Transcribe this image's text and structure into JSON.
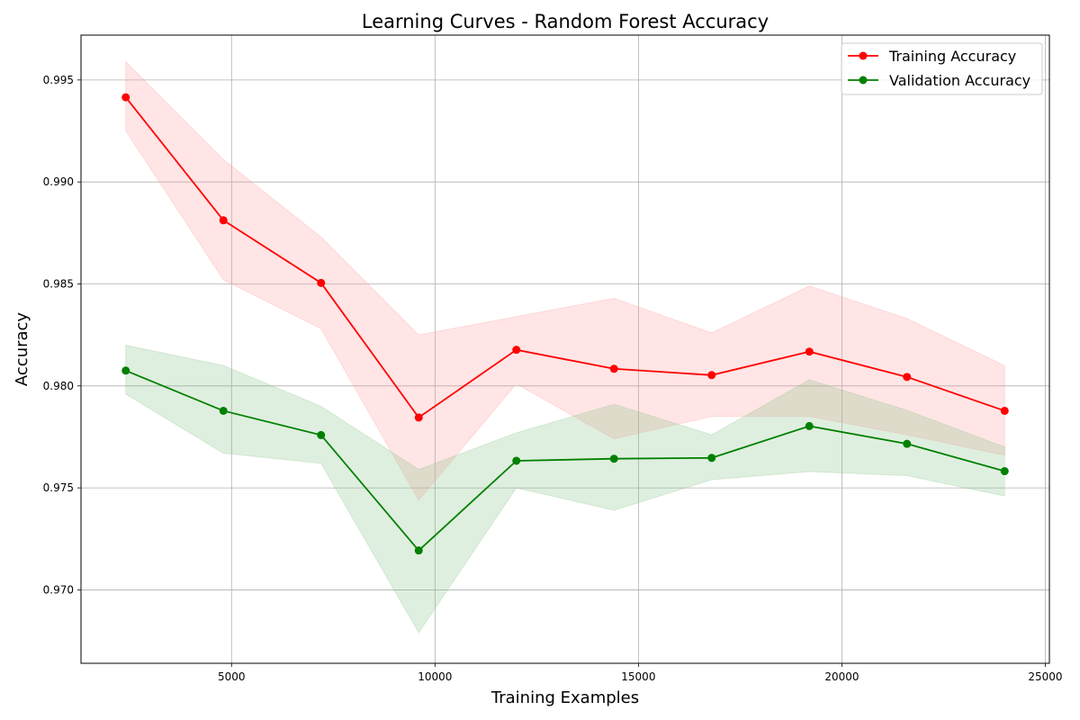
{
  "chart_data": {
    "type": "line",
    "title": "Learning Curves - Random Forest Accuracy",
    "xlabel": "Training Examples",
    "ylabel": "Accuracy",
    "xlim": [
      1300,
      25100
    ],
    "ylim": [
      0.9664,
      0.9972
    ],
    "xticks": [
      5000,
      10000,
      15000,
      20000,
      25000
    ],
    "yticks": [
      0.97,
      0.975,
      0.98,
      0.985,
      0.99,
      0.995
    ],
    "grid": true,
    "legend_position": "top-right",
    "x": [
      2400,
      4800,
      7200,
      9600,
      12000,
      14400,
      16800,
      19200,
      21600,
      24000
    ],
    "series": [
      {
        "name": "Training Accuracy",
        "color": "#ff0000",
        "band_color": "#ff9999",
        "values": [
          0.99415,
          0.98812,
          0.98505,
          0.97845,
          0.98177,
          0.98084,
          0.98053,
          0.98168,
          0.98044,
          0.97878
        ],
        "upper": [
          0.9959,
          0.9911,
          0.9873,
          0.9825,
          0.9834,
          0.9843,
          0.9826,
          0.9849,
          0.9833,
          0.981
        ],
        "lower": [
          0.9925,
          0.9852,
          0.9828,
          0.9744,
          0.9801,
          0.9774,
          0.9785,
          0.9785,
          0.9776,
          0.9766
        ]
      },
      {
        "name": "Validation Accuracy",
        "color": "#008000",
        "band_color": "#80c080",
        "values": [
          0.98075,
          0.97878,
          0.97759,
          0.97193,
          0.97633,
          0.97643,
          0.97647,
          0.97803,
          0.97716,
          0.97582
        ],
        "upper": [
          0.982,
          0.981,
          0.979,
          0.9759,
          0.9777,
          0.9791,
          0.9776,
          0.9803,
          0.9788,
          0.977
        ],
        "lower": [
          0.9796,
          0.9767,
          0.9762,
          0.9679,
          0.975,
          0.9739,
          0.9754,
          0.9758,
          0.9756,
          0.9746
        ]
      }
    ]
  }
}
